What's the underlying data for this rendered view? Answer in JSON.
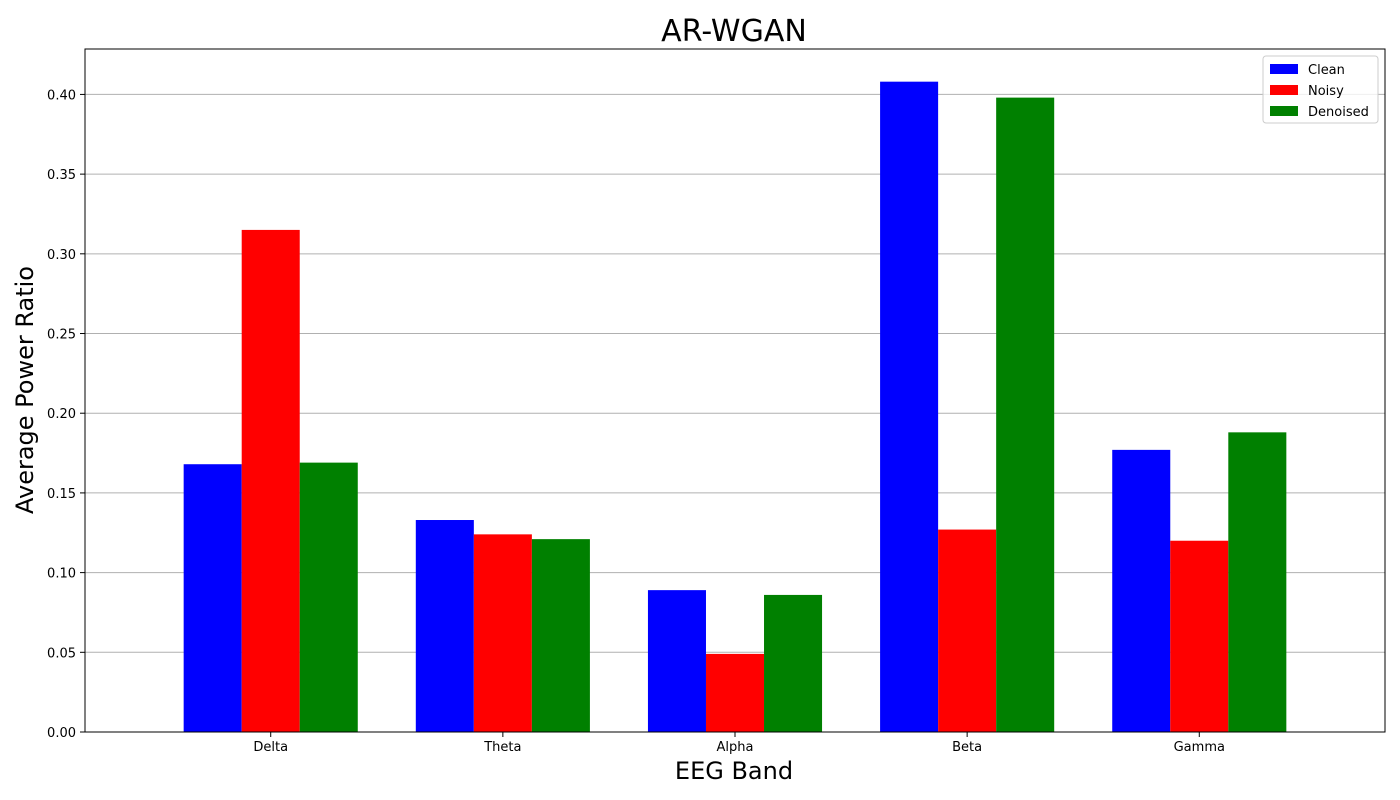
{
  "chart_data": {
    "type": "bar",
    "title": "AR-WGAN",
    "xlabel": "EEG Band",
    "ylabel": "Average Power Ratio",
    "categories": [
      "Delta",
      "Theta",
      "Alpha",
      "Beta",
      "Gamma"
    ],
    "series": [
      {
        "name": "Clean",
        "color": "#0000ff",
        "values": [
          0.168,
          0.133,
          0.089,
          0.408,
          0.177
        ]
      },
      {
        "name": "Noisy",
        "color": "#ff0000",
        "values": [
          0.315,
          0.124,
          0.049,
          0.127,
          0.12
        ]
      },
      {
        "name": "Denoised",
        "color": "#008000",
        "values": [
          0.169,
          0.121,
          0.086,
          0.398,
          0.188
        ]
      }
    ],
    "ylim": [
      0,
      0.4285
    ],
    "yticks": [
      "0.00",
      "0.05",
      "0.10",
      "0.15",
      "0.20",
      "0.25",
      "0.30",
      "0.35",
      "0.40"
    ],
    "grid": "horizontal",
    "legend_position": "top-right"
  }
}
